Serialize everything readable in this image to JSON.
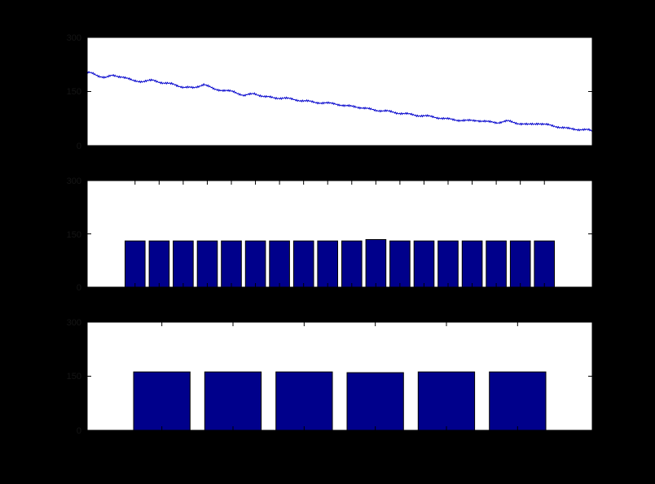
{
  "chart_data": [
    {
      "type": "line",
      "title": "",
      "xlabel": "",
      "ylabel": "",
      "xlim": [
        1,
        300
      ],
      "ylim": [
        0,
        300
      ],
      "yticks": [
        "0",
        "150",
        "300"
      ],
      "color": "#0000cc",
      "series": [
        {
          "x": [
            1,
            4,
            8,
            12,
            16,
            22,
            28,
            34,
            40,
            46,
            52,
            58,
            64,
            70,
            76,
            82,
            88,
            94,
            100,
            106,
            112,
            118,
            124,
            130,
            136,
            142,
            148,
            154,
            160,
            166,
            172,
            178,
            184,
            190,
            196,
            202,
            208,
            214,
            220,
            226,
            232,
            238,
            244,
            250,
            256,
            262,
            268,
            274,
            280,
            286,
            292,
            298,
            300
          ],
          "y": [
            203,
            200,
            193,
            189,
            194,
            191,
            180,
            178,
            181,
            174,
            170,
            162,
            160,
            170,
            157,
            153,
            149,
            139,
            144,
            136,
            132,
            132,
            127,
            124,
            120,
            118,
            116,
            110,
            108,
            103,
            98,
            96,
            91,
            88,
            84,
            82,
            78,
            74,
            71,
            69,
            70,
            66,
            64,
            68,
            62,
            58,
            62,
            57,
            52,
            47,
            45,
            43,
            40
          ]
        }
      ]
    },
    {
      "type": "bar",
      "title": "",
      "xlabel": "",
      "ylabel": "",
      "ylim": [
        0,
        300
      ],
      "yticks": [
        "0",
        "150",
        "300"
      ],
      "color": "#00008b",
      "categories": [
        "",
        "",
        "",
        "",
        "",
        "",
        "",
        "",
        "",
        "",
        "",
        "",
        "",
        "",
        "",
        "",
        "",
        ""
      ],
      "values": [
        130,
        130,
        130,
        130,
        130,
        130,
        130,
        130,
        130,
        130,
        134,
        130,
        130,
        130,
        130,
        130,
        130,
        130
      ]
    },
    {
      "type": "bar",
      "title": "",
      "xlabel": "",
      "ylabel": "",
      "ylim": [
        0,
        300
      ],
      "yticks": [
        "0",
        "150",
        "300"
      ],
      "color": "#00008b",
      "categories": [
        "",
        "",
        "",
        "",
        "",
        ""
      ],
      "values": [
        162,
        162,
        162,
        160,
        162,
        162
      ]
    }
  ]
}
